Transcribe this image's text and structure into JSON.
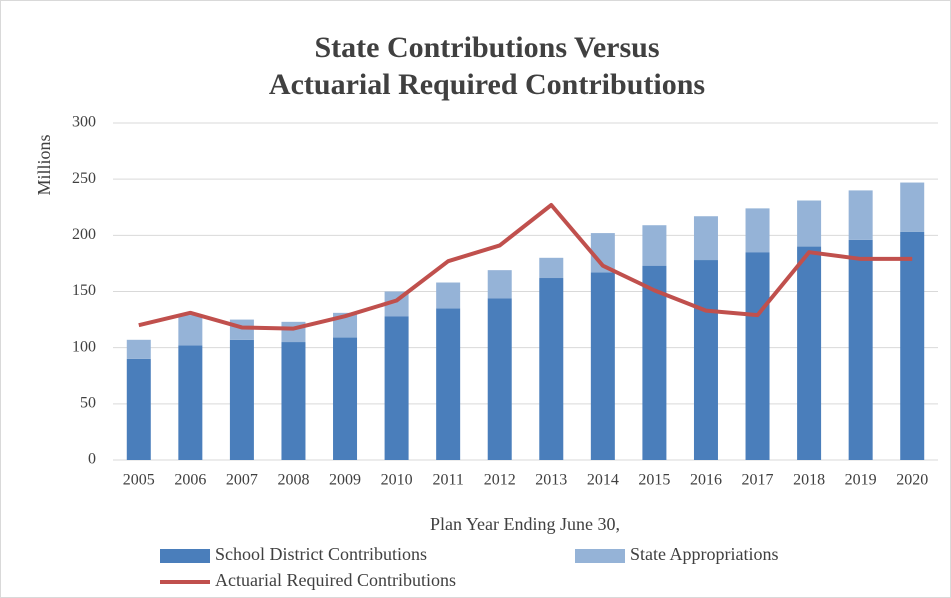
{
  "chart_data": {
    "type": "stacked-bar-line",
    "title": [
      "State Contributions Versus",
      "Actuarial Required Contributions"
    ],
    "y_label": "Millions",
    "x_label": "Plan Year Ending June 30,",
    "categories": [
      "2005",
      "2006",
      "2007",
      "2008",
      "2009",
      "2010",
      "2011",
      "2012",
      "2013",
      "2014",
      "2015",
      "2016",
      "2017",
      "2018",
      "2019",
      "2020"
    ],
    "series": [
      {
        "name": "School District Contributions",
        "color": "#4a7ebb",
        "kind": "bar",
        "values": [
          90,
          102,
          107,
          105,
          109,
          128,
          135,
          144,
          162,
          167,
          173,
          178,
          185,
          190,
          196,
          203
        ]
      },
      {
        "name": "State Appropriations",
        "color": "#95b3d7",
        "kind": "bar",
        "values": [
          17,
          27,
          18,
          18,
          22,
          22,
          23,
          25,
          18,
          35,
          36,
          39,
          39,
          41,
          44,
          44
        ]
      },
      {
        "name": "Actuarial Required Contributions",
        "color": "#c0504d",
        "kind": "line",
        "values": [
          120,
          131,
          118,
          117,
          128,
          142,
          177,
          191,
          227,
          173,
          151,
          133,
          129,
          185,
          179,
          179
        ]
      }
    ],
    "ylim": [
      0,
      300
    ],
    "yticks": [
      0,
      50,
      100,
      150,
      200,
      250,
      300
    ],
    "grid": true
  }
}
